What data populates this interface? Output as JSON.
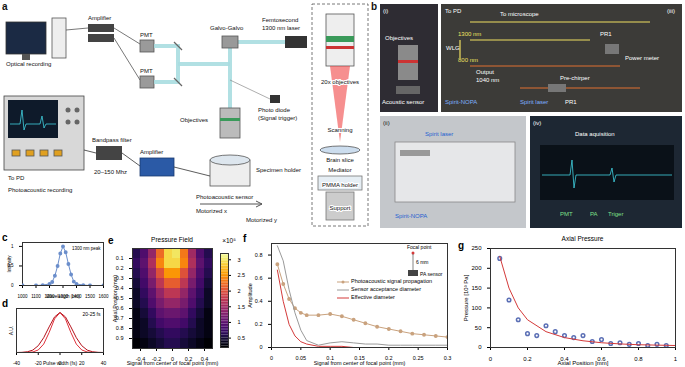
{
  "panel_a": {
    "label": "a",
    "texts": [
      "Amplifier",
      "PMT",
      "PMT",
      "Galvo-Galvo",
      "Femtosecond",
      "1300 nm laser",
      "Optical recording",
      "Objectives",
      "Photo diode",
      "(Signal trigger)",
      "To PD",
      "Photoacoustic recording",
      "Bandpass filter",
      "20–150 Mhz",
      "Amplifier",
      "Specimen holder",
      "Photoacoustic sensor",
      "Motorized x",
      "Motorized y",
      "20x objectives",
      "Scanning",
      "Brain slice",
      "Mediator",
      "PMMA holder",
      "Support"
    ]
  },
  "panel_b": {
    "label": "b",
    "texts": [
      "(i)",
      "Objectives",
      "Acoustic sensor",
      "(iii)",
      "To PD",
      "To microscope",
      "WLG",
      "1300 nm",
      "800 nm",
      "Output",
      "1040 nm",
      "Spirit-NOPA",
      "Spirit laser",
      "PR1",
      "Power meter",
      "Pre-chirper",
      "PR1",
      "(ii)",
      "Spirit laser",
      "Spirit-NOPA",
      "(iv)",
      "Data aquisition",
      "PMT",
      "PA",
      "Triger"
    ]
  },
  "chart_data": [
    {
      "panel": "c",
      "type": "line",
      "annotation": "1300 nm peak",
      "x_label": "Wavelength (nm)",
      "y_label": "Intensity",
      "x": [
        1000,
        1100,
        1150,
        1200,
        1220,
        1240,
        1260,
        1280,
        1300,
        1320,
        1340,
        1360,
        1380,
        1400,
        1450,
        1500,
        1600
      ],
      "values": [
        0,
        0,
        0.01,
        0.04,
        0.09,
        0.25,
        0.5,
        0.82,
        1,
        0.85,
        0.55,
        0.28,
        0.1,
        0.04,
        0.01,
        0,
        0
      ],
      "color": "#6b8ecb",
      "marker": "circle",
      "xlim": [
        1000,
        1600
      ],
      "xticks": [
        1000,
        1100,
        1200,
        1300,
        1400,
        1500,
        1600
      ],
      "ylim": [
        0,
        1.1
      ],
      "yticks": [
        0,
        0.5,
        1
      ]
    },
    {
      "panel": "d",
      "type": "line",
      "annotation": "20-25 fs",
      "x_label": "Pulse width (fs)",
      "y_label": "A.U.",
      "x": [
        -40,
        -35,
        -30,
        -25,
        -20,
        -15,
        -10,
        -5,
        0,
        5,
        10,
        15,
        20,
        25,
        30,
        35,
        40
      ],
      "series": [
        {
          "color": "#e0303a",
          "values": [
            0,
            0,
            0.002,
            0.013,
            0.063,
            0.21,
            0.5,
            0.84,
            1,
            0.84,
            0.5,
            0.21,
            0.063,
            0.013,
            0.002,
            0,
            0
          ]
        },
        {
          "color": "#b5121b",
          "values": [
            0,
            0.004,
            0.018,
            0.06,
            0.17,
            0.37,
            0.64,
            0.89,
            1,
            0.89,
            0.64,
            0.37,
            0.17,
            0.06,
            0.018,
            0.004,
            0
          ]
        }
      ],
      "xlim": [
        -40,
        40
      ],
      "xticks": [
        -40,
        -20,
        0,
        20,
        40
      ],
      "ylim": [
        0,
        1.1
      ],
      "tick_labels": "x"
    },
    {
      "panel": "e",
      "type": "heatmap",
      "title": "Pressure Field",
      "x_label": "Signal from center of focal point (mm)",
      "y_label": "Axial Position (mm)",
      "x": [
        -0.45,
        -0.35,
        -0.25,
        -0.15,
        -0.05,
        0.05,
        0.15,
        0.25,
        0.35,
        0.45
      ],
      "y": [
        0.05,
        0.15,
        0.25,
        0.35,
        0.45,
        0.55,
        0.65,
        0.75,
        0.85,
        0.95
      ],
      "cells": [
        [
          0.6,
          0.9,
          1.4,
          2.2,
          2.9,
          3.0,
          2.3,
          1.5,
          0.9,
          0.6
        ],
        [
          0.7,
          1.0,
          1.6,
          2.4,
          2.9,
          2.9,
          2.4,
          1.6,
          1.0,
          0.7
        ],
        [
          0.6,
          0.9,
          1.4,
          2.0,
          2.5,
          2.5,
          2.0,
          1.4,
          0.9,
          0.6
        ],
        [
          0.5,
          0.8,
          1.2,
          1.7,
          2.1,
          2.1,
          1.7,
          1.2,
          0.8,
          0.5
        ],
        [
          0.4,
          0.7,
          1.0,
          1.4,
          1.7,
          1.7,
          1.4,
          1.0,
          0.7,
          0.4
        ],
        [
          0.4,
          0.6,
          0.9,
          1.2,
          1.4,
          1.4,
          1.2,
          0.9,
          0.6,
          0.4
        ],
        [
          0.3,
          0.5,
          0.7,
          1.0,
          1.1,
          1.1,
          1.0,
          0.7,
          0.5,
          0.3
        ],
        [
          0.3,
          0.4,
          0.6,
          0.8,
          0.9,
          0.9,
          0.8,
          0.6,
          0.4,
          0.3
        ],
        [
          0.3,
          0.4,
          0.5,
          0.6,
          0.7,
          0.7,
          0.6,
          0.5,
          0.4,
          0.3
        ],
        [
          0.2,
          0.3,
          0.4,
          0.5,
          0.6,
          0.6,
          0.5,
          0.4,
          0.3,
          0.2
        ]
      ],
      "xlim": [
        -0.5,
        0.5
      ],
      "xticks": [
        -0.4,
        -0.2,
        0,
        0.2,
        0.4
      ],
      "ylim": [
        1,
        0
      ],
      "yticks": [
        0.1,
        0.2,
        0.3,
        0.4,
        0.5,
        0.6,
        0.7,
        0.8,
        0.9
      ],
      "colorbar": {
        "label": "×10⁵",
        "range": [
          0.2,
          3.2
        ],
        "ticks": [
          0.5,
          1,
          1.5,
          2,
          2.5,
          3
        ]
      }
    },
    {
      "panel": "f",
      "type": "line",
      "x_label": "Signal from center of focal point (mm)",
      "y_label": "Amplitude",
      "x": [
        0.01,
        0.02,
        0.03,
        0.04,
        0.05,
        0.06,
        0.08,
        0.1,
        0.12,
        0.14,
        0.16,
        0.18,
        0.2,
        0.22,
        0.24,
        0.26,
        0.28,
        0.3
      ],
      "series": [
        {
          "name": "Photoacoustic signal propagation",
          "color": "#c9a27e",
          "marker": "circle",
          "values": [
            0.72,
            0.55,
            0.42,
            0.34,
            0.3,
            0.28,
            0.28,
            0.29,
            0.27,
            0.24,
            0.21,
            0.18,
            0.16,
            0.14,
            0.12,
            0.11,
            0.1,
            0.09
          ]
        },
        {
          "name": "Sensor acceptance diameter",
          "color": "#9a9a9a",
          "values": [
            0.88,
            0.75,
            0.5,
            0.3,
            0.15,
            0.06,
            0.02,
            0.04,
            0.05,
            0.04,
            0.03,
            0.03,
            0.02,
            0.02,
            0.02,
            0.02,
            0.02,
            0.02
          ]
        },
        {
          "name": "Effective diameter",
          "color": "#d43a3a",
          "values": [
            0.67,
            0.4,
            0.2,
            0.1,
            0.05,
            0.03,
            0.01,
            0.01,
            0.01,
            0,
            0,
            0,
            0,
            0,
            0,
            0,
            0,
            0
          ]
        }
      ],
      "legend": "upper right",
      "inset": {
        "texts": [
          "Focal point",
          "6 mm",
          "PA sensor"
        ]
      },
      "xlim": [
        0,
        0.3
      ],
      "xticks": [
        0,
        0.05,
        0.1,
        0.15,
        0.2,
        0.25,
        0.3
      ],
      "ylim": [
        0,
        0.9
      ],
      "yticks": [
        0,
        0.2,
        0.4,
        0.6,
        0.8
      ]
    },
    {
      "panel": "g",
      "type": "scatter",
      "title": "Axial Pressure",
      "x_label": "Axial Position [mm]",
      "y_label": "Pressure [10³ Pa]",
      "series": [
        {
          "type": "scatter",
          "color": "#5b6fb5",
          "marker": "circle",
          "x": [
            0.05,
            0.1,
            0.15,
            0.2,
            0.25,
            0.3,
            0.35,
            0.4,
            0.45,
            0.5,
            0.55,
            0.6,
            0.65,
            0.7,
            0.75,
            0.8,
            0.85,
            0.9,
            0.95
          ],
          "values": [
            225,
            120,
            70,
            35,
            30,
            55,
            40,
            30,
            25,
            30,
            15,
            20,
            10,
            12,
            8,
            10,
            5,
            8,
            5
          ]
        },
        {
          "type": "line",
          "color": "#d43a3a",
          "x": [
            0.05,
            0.1,
            0.15,
            0.2,
            0.3,
            0.4,
            0.5,
            0.6,
            0.7,
            0.8,
            0.9,
            1
          ],
          "values": [
            230,
            150,
            100,
            70,
            40,
            25,
            17,
            12,
            9,
            7,
            6,
            5
          ]
        }
      ],
      "xlim": [
        0,
        1
      ],
      "xticks": [
        0,
        0.2,
        0.4,
        0.6,
        0.8,
        1
      ],
      "ylim": [
        0,
        250
      ],
      "yticks": [
        0,
        50,
        100,
        150,
        200,
        250
      ]
    }
  ]
}
